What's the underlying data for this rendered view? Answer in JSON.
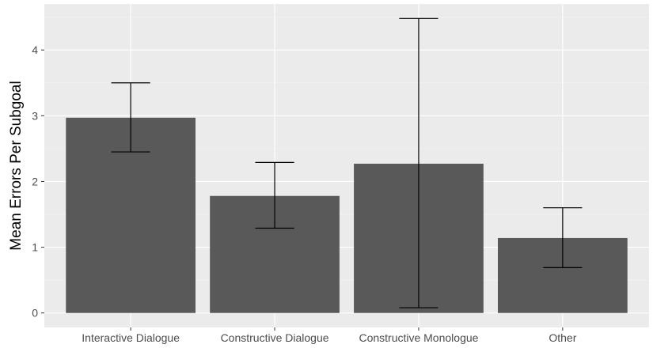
{
  "chart_data": {
    "type": "bar",
    "title": "",
    "xlabel": "",
    "ylabel": "Mean Errors Per Subgoal",
    "categories": [
      "Interactive Dialogue",
      "Constructive Dialogue",
      "Constructive Monologue",
      "Other"
    ],
    "values": [
      2.97,
      1.78,
      2.27,
      1.14
    ],
    "error_low": [
      2.45,
      1.29,
      0.08,
      0.69
    ],
    "error_high": [
      3.5,
      2.29,
      4.48,
      1.6
    ],
    "ylim": [
      -0.22,
      4.7
    ],
    "yticks": [
      0,
      1,
      2,
      3,
      4
    ],
    "grid": true,
    "legend": "none",
    "colors": {
      "bar": "#595959",
      "panel": "#ebebeb",
      "grid_major": "#ffffff",
      "grid_minor": "#f5f5f5",
      "errorbar": "#000000"
    }
  }
}
